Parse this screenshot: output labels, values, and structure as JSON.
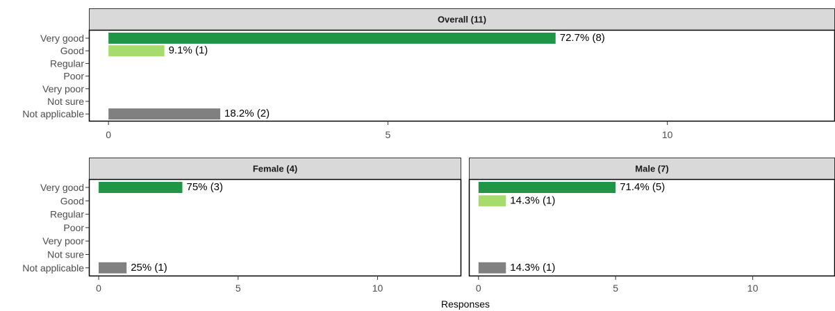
{
  "chart_data": {
    "type": "bar",
    "orientation": "horizontal",
    "categories": [
      "Very good",
      "Good",
      "Regular",
      "Poor",
      "Very poor",
      "Not sure",
      "Not applicable"
    ],
    "xlabel": "Responses",
    "grid": false,
    "legend": "none",
    "colors": {
      "Very good": "#1e9646",
      "Good": "#a6dc6c",
      "Not applicable": "#808080",
      "strip_bg": "#d9d9d9",
      "frame": "#333333"
    },
    "panels": [
      {
        "title": "Overall (11)",
        "xlim": [
          -0.35,
          13
        ],
        "xticks": [
          0,
          5,
          10
        ],
        "values": [
          8,
          1,
          0,
          0,
          0,
          0,
          2
        ],
        "bar_labels": [
          "72.7% (8)",
          "9.1% (1)",
          "",
          "",
          "",
          "",
          "18.2% (2)"
        ]
      },
      {
        "title": "Female (4)",
        "xlim": [
          -0.35,
          13
        ],
        "xticks": [
          0,
          5,
          10
        ],
        "values": [
          3,
          0,
          0,
          0,
          0,
          0,
          1
        ],
        "bar_labels": [
          "75% (3)",
          "",
          "",
          "",
          "",
          "",
          "25% (1)"
        ]
      },
      {
        "title": "Male (7)",
        "xlim": [
          -0.35,
          13
        ],
        "xticks": [
          0,
          5,
          10
        ],
        "values": [
          5,
          1,
          0,
          0,
          0,
          0,
          1
        ],
        "bar_labels": [
          "71.4% (5)",
          "14.3% (1)",
          "",
          "",
          "",
          "",
          "14.3% (1)"
        ]
      }
    ]
  }
}
